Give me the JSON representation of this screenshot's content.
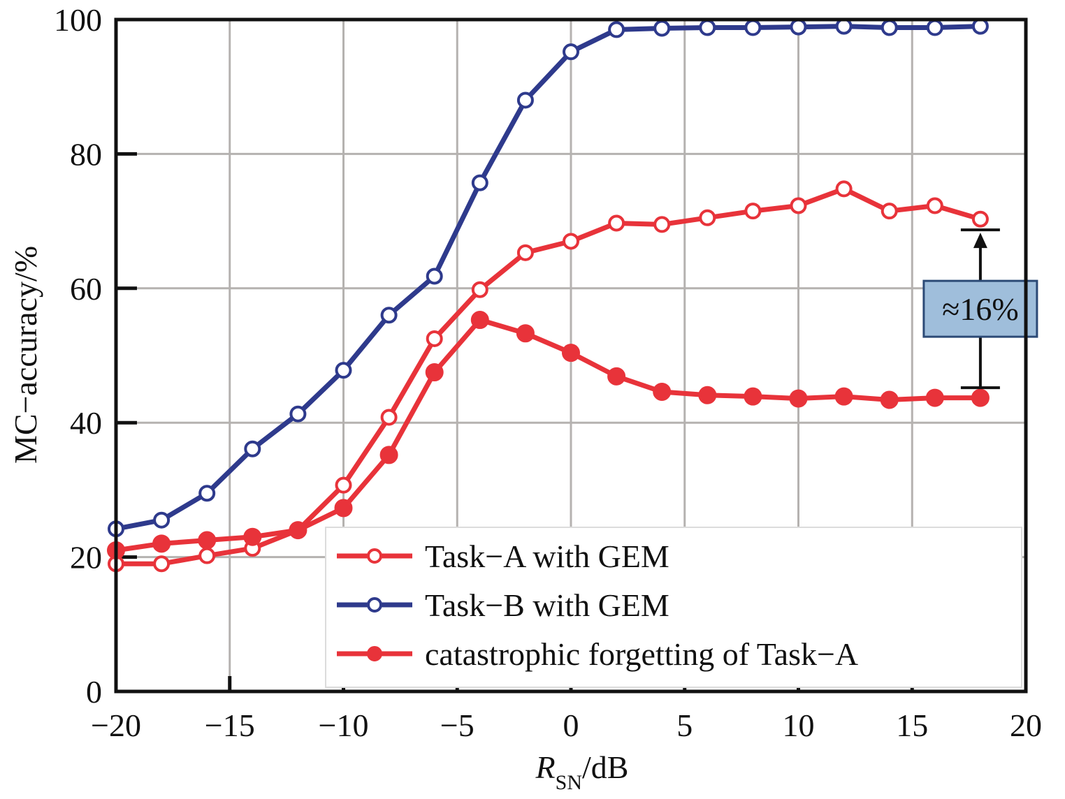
{
  "chart_data": {
    "type": "line",
    "title": "",
    "xlabel": {
      "main": "R",
      "sub": "SN",
      "unit": "/dB"
    },
    "ylabel": "MC−accuracy/%",
    "xlim": [
      -20,
      20
    ],
    "ylim": [
      0,
      100
    ],
    "xticks": [
      "−20",
      "−15",
      "−10",
      "−5",
      "0",
      "5",
      "10",
      "15",
      "20"
    ],
    "yticks": [
      "0",
      "20",
      "40",
      "60",
      "80",
      "100"
    ],
    "grid": true,
    "legend_position": "bottom-right",
    "x": [
      -20,
      -18,
      -16,
      -14,
      -12,
      -10,
      -8,
      -6,
      -4,
      -2,
      0,
      2,
      4,
      6,
      8,
      10,
      12,
      14,
      16,
      18
    ],
    "series": [
      {
        "name": "Task−A with GEM",
        "color": "#e8333a",
        "marker": "open-circle",
        "values": [
          19.0,
          19.0,
          20.2,
          21.3,
          24.0,
          30.7,
          40.8,
          52.5,
          59.8,
          65.3,
          67.0,
          69.7,
          69.5,
          70.5,
          71.5,
          72.3,
          74.8,
          71.5,
          72.3,
          70.3
        ]
      },
      {
        "name": "Task−B with GEM",
        "color": "#2e3a8c",
        "marker": "open-circle",
        "values": [
          24.2,
          25.5,
          29.5,
          36.1,
          41.3,
          47.8,
          56.0,
          61.8,
          75.7,
          88.0,
          95.2,
          98.5,
          98.7,
          98.8,
          98.8,
          98.9,
          99.0,
          98.8,
          98.8,
          99.0
        ]
      },
      {
        "name": "catastrophic forgetting of Task−A",
        "color": "#e8333a",
        "marker": "filled-circle",
        "values": [
          21.0,
          22.0,
          22.5,
          23.0,
          24.0,
          27.3,
          35.2,
          47.5,
          55.3,
          53.3,
          50.4,
          46.9,
          44.6,
          44.1,
          43.9,
          43.6,
          43.9,
          43.4,
          43.7,
          43.7
        ]
      }
    ],
    "annotations": [
      {
        "text": "≈16%",
        "x": 18,
        "y_from": 45.2,
        "y_to": 68.7
      }
    ]
  },
  "colors": {
    "axis": "#111111",
    "grid": "#b5b2b0",
    "annotation_box_fill": "#9fbedb",
    "annotation_box_stroke": "#2c4a76"
  }
}
